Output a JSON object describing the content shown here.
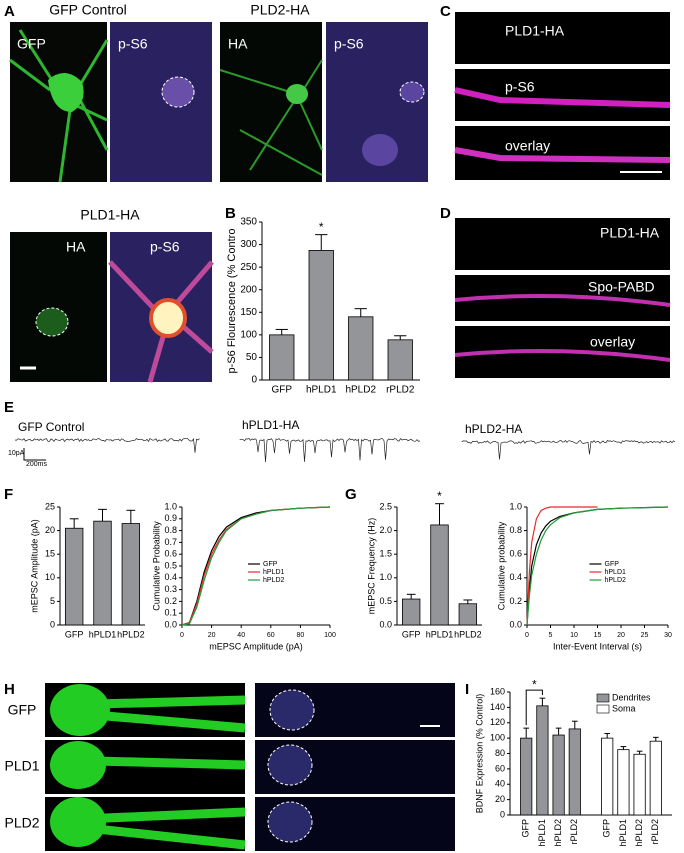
{
  "panel_letters": [
    "A",
    "B",
    "C",
    "D",
    "E",
    "F",
    "G",
    "H",
    "I"
  ],
  "panel_a": {
    "titles": [
      "GFP Control",
      "PLD2-HA",
      "PLD1-HA"
    ],
    "image_labels": [
      "GFP",
      "p-S6",
      "HA",
      "p-S6",
      "HA",
      "p-S6"
    ]
  },
  "panel_c": {
    "image_labels": [
      "PLD1-HA",
      "p-S6",
      "overlay"
    ]
  },
  "panel_d": {
    "image_labels": [
      "PLD1-HA",
      "Spo-PABD",
      "overlay"
    ]
  },
  "panel_e": {
    "trace_labels": [
      "GFP Control",
      "hPLD1-HA",
      "hPLD2-HA"
    ],
    "scale_bar": [
      "10pA",
      "200ms"
    ]
  },
  "panel_h": {
    "row_labels": [
      "GFP",
      "PLD1",
      "PLD2"
    ]
  },
  "chart_data": [
    {
      "type": "bar",
      "ylabel": "p-S6 Flourescence (% Contro",
      "categories": [
        "GFP",
        "hPLD1",
        "hPLD2",
        "rPLD2"
      ],
      "values": [
        100,
        287,
        140,
        89
      ],
      "errors": [
        12,
        35,
        18,
        9
      ],
      "color": "#939598",
      "ylim": [
        0,
        350
      ],
      "yticks": [
        0,
        50,
        100,
        150,
        200,
        250,
        300,
        350
      ],
      "significance": "*"
    },
    {
      "type": "bar",
      "ylabel": "mEPSC Amplitude (pA)",
      "categories": [
        "GFP",
        "hPLD1",
        "hPLD2"
      ],
      "values": [
        20.5,
        22,
        21.5
      ],
      "errors": [
        2,
        2.5,
        2.8
      ],
      "color": "#939598",
      "ylim": [
        0,
        25
      ],
      "yticks": [
        0,
        5,
        10,
        15,
        20,
        25
      ]
    },
    {
      "type": "line",
      "xlabel": "mEPSC Amplitude (pA)",
      "ylabel": "Cumulative Probability",
      "x": [
        0,
        5,
        10,
        15,
        20,
        25,
        30,
        40,
        50,
        60,
        80,
        100
      ],
      "series": [
        {
          "name": "GFP",
          "color": "#000000",
          "values": [
            0,
            0.02,
            0.2,
            0.45,
            0.63,
            0.75,
            0.83,
            0.91,
            0.95,
            0.97,
            0.99,
            1.0
          ]
        },
        {
          "name": "hPLD1",
          "color": "#e8292b",
          "values": [
            0,
            0.02,
            0.18,
            0.42,
            0.6,
            0.72,
            0.81,
            0.9,
            0.94,
            0.97,
            0.99,
            1.0
          ]
        },
        {
          "name": "hPLD2",
          "color": "#1f9e3a",
          "values": [
            0,
            0.01,
            0.15,
            0.38,
            0.57,
            0.7,
            0.8,
            0.9,
            0.94,
            0.97,
            0.99,
            1.0
          ]
        }
      ],
      "xlim": [
        0,
        100
      ],
      "xticks": [
        0,
        20,
        40,
        60,
        80,
        100
      ],
      "ylim": [
        0,
        1.0
      ],
      "yticks": [
        {
          "value": 0,
          "label": "0.0"
        },
        0.1,
        0.2,
        0.3,
        0.4,
        0.5,
        0.6,
        0.7,
        0.8,
        0.9,
        {
          "value": 1,
          "label": "1.0"
        }
      ],
      "legend": "center"
    },
    {
      "type": "bar",
      "ylabel": "mEPSC Frequency (Hz)",
      "categories": [
        "GFP",
        "hPLD1",
        "hPLD2"
      ],
      "values": [
        0.55,
        2.12,
        0.45
      ],
      "errors": [
        0.1,
        0.45,
        0.08
      ],
      "color": "#939598",
      "ylim": [
        0,
        2.5
      ],
      "yticks": [
        {
          "value": 0,
          "label": "0.0"
        },
        0.5,
        {
          "value": 1,
          "label": "1.0"
        },
        1.5,
        {
          "value": 2,
          "label": "2.0"
        },
        2.5
      ],
      "significance": "*"
    },
    {
      "type": "line",
      "xlabel": "Inter-Event Interval (s)",
      "ylabel": "Cumulative probability",
      "x": [
        0,
        0.5,
        1,
        2,
        3,
        4,
        5,
        7,
        10,
        15,
        20,
        30
      ],
      "series": [
        {
          "name": "GFP",
          "color": "#000000",
          "values": [
            0,
            0.3,
            0.5,
            0.68,
            0.78,
            0.84,
            0.88,
            0.92,
            0.95,
            0.98,
            0.99,
            1.0
          ]
        },
        {
          "name": "hPLD1",
          "color": "#e8292b",
          "values": [
            0,
            0.45,
            0.7,
            0.9,
            0.97,
            0.99,
            1.0,
            1.0,
            1.0,
            1.0,
            null,
            null
          ]
        },
        {
          "name": "hPLD2",
          "color": "#1f9e3a",
          "values": [
            0,
            0.25,
            0.42,
            0.6,
            0.72,
            0.8,
            0.85,
            0.91,
            0.95,
            0.98,
            0.99,
            1.0
          ]
        }
      ],
      "xlim": [
        0,
        30
      ],
      "xticks": [
        0,
        5,
        10,
        15,
        20,
        25,
        30
      ],
      "ylim": [
        0,
        1.0
      ],
      "yticks": [
        {
          "value": 0,
          "label": "0.0"
        },
        0.2,
        0.4,
        0.6,
        0.8,
        {
          "value": 1,
          "label": "1.0"
        }
      ],
      "legend": "center"
    },
    {
      "type": "bar",
      "ylabel": "BDNF Expression (% Control)",
      "categories": [
        "GFP",
        "hPLD1",
        "hPLD2",
        "rPLD2"
      ],
      "series": [
        {
          "name": "Dendrites",
          "color": "#939598",
          "values": [
            100,
            142,
            104,
            112
          ],
          "errors": [
            13,
            10,
            9,
            10
          ]
        },
        {
          "name": "Soma",
          "color": "#ffffff",
          "values": [
            100,
            85,
            79,
            96
          ],
          "errors": [
            6,
            4,
            4,
            5
          ]
        }
      ],
      "ylim": [
        0,
        160
      ],
      "yticks": [
        0,
        20,
        40,
        60,
        80,
        100,
        120,
        140,
        160
      ],
      "significance": "*",
      "legend": "upper right"
    }
  ]
}
